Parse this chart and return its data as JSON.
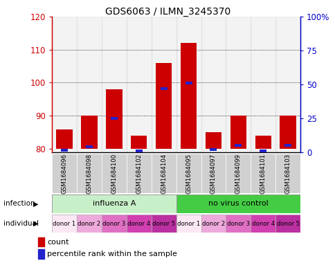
{
  "title": "GDS6063 / ILMN_3245370",
  "samples": [
    "GSM1684096",
    "GSM1684098",
    "GSM1684100",
    "GSM1684102",
    "GSM1684104",
    "GSM1684095",
    "GSM1684097",
    "GSM1684099",
    "GSM1684101",
    "GSM1684103"
  ],
  "red_values": [
    86,
    90,
    98,
    84,
    106,
    112,
    85,
    90,
    84,
    90
  ],
  "blue_pct": [
    1.5,
    4,
    25,
    1,
    47,
    51,
    2,
    5,
    1,
    5
  ],
  "ylim_left": [
    79,
    120
  ],
  "ylim_right": [
    0,
    100
  ],
  "yticks_left": [
    80,
    90,
    100,
    110,
    120
  ],
  "yticks_right": [
    0,
    25,
    50,
    75,
    100
  ],
  "ytick_labels_right": [
    "0",
    "25",
    "50",
    "75",
    "100%"
  ],
  "individual_labels": [
    "donor 1",
    "donor 2",
    "donor 3",
    "donor 4",
    "donor 5",
    "donor 1",
    "donor 2",
    "donor 3",
    "donor 4",
    "donor 5"
  ],
  "individual_colors": [
    "#fce8f4",
    "#eeaadc",
    "#e070c4",
    "#d040b0",
    "#bb30a0",
    "#fce8f4",
    "#eeaadc",
    "#e070c4",
    "#d040b0",
    "#bb30a0"
  ],
  "inf_label1": "influenza A",
  "inf_label2": "no virus control",
  "inf_color1": "#c8f0c8",
  "inf_color2": "#44cc44",
  "bar_width": 0.65,
  "blue_bar_width": 0.28,
  "baseline": 80,
  "left_axis_color": "#cc0000",
  "right_axis_color": "#0000cc",
  "sample_bg_color": "#d0d0d0"
}
